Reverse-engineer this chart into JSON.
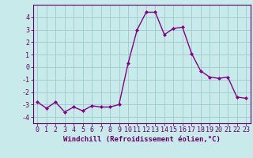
{
  "x": [
    0,
    1,
    2,
    3,
    4,
    5,
    6,
    7,
    8,
    9,
    10,
    11,
    12,
    13,
    14,
    15,
    16,
    17,
    18,
    19,
    20,
    21,
    22,
    23
  ],
  "y": [
    -2.8,
    -3.3,
    -2.8,
    -3.6,
    -3.2,
    -3.5,
    -3.1,
    -3.2,
    -3.2,
    -3.0,
    0.3,
    3.0,
    4.4,
    4.4,
    2.6,
    3.1,
    3.2,
    1.1,
    -0.3,
    -0.8,
    -0.9,
    -0.8,
    -2.4,
    -2.5
  ],
  "line_color": "#880088",
  "marker": "D",
  "marker_size": 2.0,
  "linewidth": 1.0,
  "xlabel": "Windchill (Refroidissement éolien,°C)",
  "xlim": [
    -0.5,
    23.5
  ],
  "ylim": [
    -4.5,
    5.0
  ],
  "yticks": [
    -4,
    -3,
    -2,
    -1,
    0,
    1,
    2,
    3,
    4
  ],
  "xticks": [
    0,
    1,
    2,
    3,
    4,
    5,
    6,
    7,
    8,
    9,
    10,
    11,
    12,
    13,
    14,
    15,
    16,
    17,
    18,
    19,
    20,
    21,
    22,
    23
  ],
  "grid_color": "#99cccc",
  "bg_color": "#c8eaea",
  "axis_color": "#660066",
  "label_fontsize": 6.5,
  "tick_fontsize": 6.0
}
